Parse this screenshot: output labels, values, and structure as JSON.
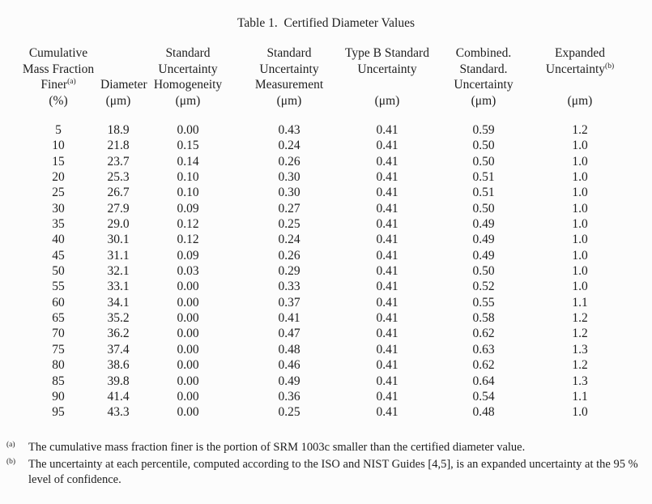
{
  "title": "Table 1.  Certified Diameter Values",
  "table": {
    "columns": [
      {
        "id": "cumulative-mass-fraction-finer",
        "lines": [
          "Cumulative",
          "Mass Fraction",
          "Finer^(a)",
          "(%)"
        ]
      },
      {
        "id": "diameter",
        "lines": [
          "",
          "",
          "Diameter",
          "(μm)"
        ]
      },
      {
        "id": "standard-uncertainty-homogeneity",
        "lines": [
          "Standard",
          "Uncertainty",
          "Homogeneity",
          "(μm)"
        ]
      },
      {
        "id": "standard-uncertainty-measurement",
        "lines": [
          "Standard",
          "Uncertainty",
          "Measurement",
          "(μm)"
        ]
      },
      {
        "id": "type-b-standard-uncertainty",
        "lines": [
          "Type B Standard",
          "Uncertainty",
          "",
          "(μm)"
        ]
      },
      {
        "id": "combined-standard-uncertainty",
        "lines": [
          "Combined.",
          "Standard.",
          "Uncertainty",
          "(μm)"
        ]
      },
      {
        "id": "expanded-uncertainty",
        "lines": [
          "Expanded",
          "Uncertainty^(b)",
          "",
          "(μm)"
        ]
      }
    ],
    "rows": [
      [
        "5",
        "18.9",
        "0.00",
        "0.43",
        "0.41",
        "0.59",
        "1.2"
      ],
      [
        "10",
        "21.8",
        "0.15",
        "0.24",
        "0.41",
        "0.50",
        "1.0"
      ],
      [
        "15",
        "23.7",
        "0.14",
        "0.26",
        "0.41",
        "0.50",
        "1.0"
      ],
      [
        "20",
        "25.3",
        "0.10",
        "0.30",
        "0.41",
        "0.51",
        "1.0"
      ],
      [
        "25",
        "26.7",
        "0.10",
        "0.30",
        "0.41",
        "0.51",
        "1.0"
      ],
      [
        "30",
        "27.9",
        "0.09",
        "0.27",
        "0.41",
        "0.50",
        "1.0"
      ],
      [
        "35",
        "29.0",
        "0.12",
        "0.25",
        "0.41",
        "0.49",
        "1.0"
      ],
      [
        "40",
        "30.1",
        "0.12",
        "0.24",
        "0.41",
        "0.49",
        "1.0"
      ],
      [
        "45",
        "31.1",
        "0.09",
        "0.26",
        "0.41",
        "0.49",
        "1.0"
      ],
      [
        "50",
        "32.1",
        "0.03",
        "0.29",
        "0.41",
        "0.50",
        "1.0"
      ],
      [
        "55",
        "33.1",
        "0.00",
        "0.33",
        "0.41",
        "0.52",
        "1.0"
      ],
      [
        "60",
        "34.1",
        "0.00",
        "0.37",
        "0.41",
        "0.55",
        "1.1"
      ],
      [
        "65",
        "35.2",
        "0.00",
        "0.41",
        "0.41",
        "0.58",
        "1.2"
      ],
      [
        "70",
        "36.2",
        "0.00",
        "0.47",
        "0.41",
        "0.62",
        "1.2"
      ],
      [
        "75",
        "37.4",
        "0.00",
        "0.48",
        "0.41",
        "0.63",
        "1.3"
      ],
      [
        "80",
        "38.6",
        "0.00",
        "0.46",
        "0.41",
        "0.62",
        "1.2"
      ],
      [
        "85",
        "39.8",
        "0.00",
        "0.49",
        "0.41",
        "0.64",
        "1.3"
      ],
      [
        "90",
        "41.4",
        "0.00",
        "0.36",
        "0.41",
        "0.54",
        "1.1"
      ],
      [
        "95",
        "43.3",
        "0.00",
        "0.25",
        "0.41",
        "0.48",
        "1.0"
      ]
    ]
  },
  "footnotes": [
    {
      "marker": "(a)",
      "lines": [
        "The cumulative mass fraction finer is the portion of SRM 1003c smaller than the certified diameter value."
      ]
    },
    {
      "marker": "(b)",
      "lines": [
        "The uncertainty at each percentile, computed according to the ISO and NIST Guides [4,5], is an expanded uncertainty at the 95 %",
        "level of confidence."
      ]
    }
  ]
}
